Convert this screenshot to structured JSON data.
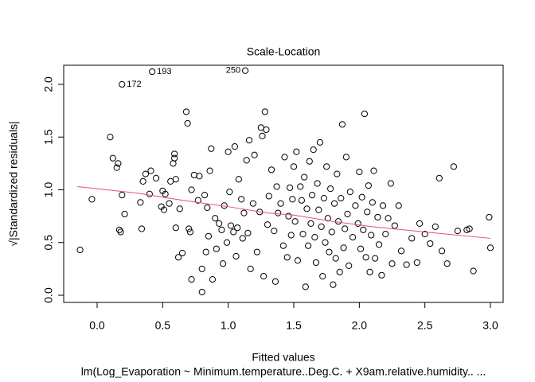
{
  "chart_data": {
    "type": "scatter",
    "title": "Scale-Location",
    "x_label": "Fitted values",
    "y_label": "√|Standardized residuals|",
    "subtitle": "lm(Log_Evaporation ~ Minimum.temperature..Deg.C. + X9am.relative.humidity.. ...",
    "xlim": [
      -0.255,
      3.097
    ],
    "ylim": [
      -0.068,
      2.181
    ],
    "xticks": [
      {
        "value": 0,
        "label": "0.0"
      },
      0.5,
      {
        "value": 1,
        "label": "1.0"
      },
      1.5,
      {
        "value": 2,
        "label": "2.0"
      },
      2.5,
      {
        "value": 3,
        "label": "3.0"
      }
    ],
    "yticks": [
      {
        "value": 0,
        "label": "0.0"
      },
      0.5,
      {
        "value": 1,
        "label": "1.0"
      },
      1.5,
      {
        "value": 2,
        "label": "2.0"
      }
    ],
    "point_color": "#000000",
    "x": [
      -0.13,
      -0.04,
      0.1,
      0.12,
      0.15,
      0.16,
      0.17,
      0.18,
      0.19,
      0.21,
      0.19,
      0.33,
      0.34,
      0.35,
      0.37,
      0.4,
      0.41,
      0.42,
      0.45,
      0.49,
      0.5,
      0.51,
      0.52,
      0.55,
      0.56,
      0.58,
      0.59,
      0.59,
      0.6,
      0.6,
      0.62,
      0.63,
      0.65,
      0.68,
      0.69,
      0.7,
      0.71,
      0.72,
      0.72,
      0.74,
      0.77,
      0.78,
      0.8,
      0.8,
      0.82,
      0.83,
      0.84,
      0.85,
      0.86,
      0.87,
      0.88,
      0.9,
      0.91,
      0.93,
      0.95,
      0.96,
      0.97,
      0.99,
      1.0,
      1.01,
      1.02,
      1.04,
      1.05,
      1.06,
      1.07,
      1.08,
      1.1,
      1.11,
      1.12,
      1.13,
      1.14,
      1.15,
      1.16,
      1.17,
      1.19,
      1.2,
      1.22,
      1.24,
      1.25,
      1.26,
      1.27,
      1.28,
      1.29,
      1.3,
      1.31,
      1.33,
      1.35,
      1.36,
      1.37,
      1.38,
      1.4,
      1.42,
      1.43,
      1.45,
      1.46,
      1.47,
      1.48,
      1.49,
      1.5,
      1.51,
      1.52,
      1.53,
      1.55,
      1.56,
      1.57,
      1.58,
      1.59,
      1.6,
      1.61,
      1.62,
      1.63,
      1.64,
      1.65,
      1.66,
      1.67,
      1.68,
      1.69,
      1.7,
      1.71,
      1.72,
      1.73,
      1.74,
      1.75,
      1.76,
      1.77,
      1.78,
      1.79,
      1.8,
      1.81,
      1.82,
      1.83,
      1.84,
      1.85,
      1.86,
      1.87,
      1.88,
      1.89,
      1.9,
      1.91,
      1.92,
      1.93,
      1.95,
      1.97,
      1.99,
      2.0,
      2.01,
      2.02,
      2.03,
      2.04,
      2.05,
      2.06,
      2.07,
      2.08,
      2.09,
      2.1,
      2.11,
      2.12,
      2.14,
      2.15,
      2.17,
      2.18,
      2.2,
      2.22,
      2.24,
      2.25,
      2.27,
      2.3,
      2.32,
      2.36,
      2.4,
      2.44,
      2.46,
      2.5,
      2.54,
      2.58,
      2.61,
      2.63,
      2.67,
      2.72,
      2.75,
      2.82,
      2.84,
      2.87,
      2.99,
      3.0
    ],
    "values": [
      0.43,
      0.91,
      1.5,
      1.3,
      1.21,
      1.25,
      0.62,
      0.6,
      0.95,
      0.77,
      2.0,
      0.88,
      0.63,
      1.08,
      1.15,
      0.96,
      1.18,
      2.12,
      1.11,
      0.84,
      0.99,
      0.81,
      0.96,
      0.87,
      1.08,
      1.25,
      1.3,
      1.34,
      1.1,
      0.64,
      0.36,
      0.82,
      0.4,
      1.74,
      1.63,
      0.63,
      0.6,
      0.15,
      1.0,
      1.14,
      0.9,
      1.13,
      0.03,
      0.25,
      0.95,
      0.41,
      0.83,
      0.56,
      1.18,
      1.39,
      0.15,
      0.73,
      0.44,
      0.68,
      0.62,
      0.3,
      0.85,
      0.5,
      1.36,
      0.98,
      0.66,
      0.6,
      1.41,
      0.37,
      0.64,
      1.1,
      0.91,
      0.54,
      0.78,
      2.13,
      1.28,
      0.59,
      1.47,
      0.25,
      0.87,
      1.33,
      0.41,
      0.79,
      1.59,
      1.51,
      0.18,
      1.74,
      1.57,
      0.67,
      0.94,
      1.19,
      0.61,
      0.13,
      1.03,
      0.78,
      0.87,
      0.47,
      1.31,
      0.36,
      0.75,
      1.02,
      0.57,
      0.91,
      1.22,
      0.7,
      1.36,
      0.33,
      1.03,
      0.9,
      0.58,
      1.12,
      0.08,
      0.82,
      0.47,
      1.27,
      0.68,
      0.95,
      1.38,
      0.55,
      0.31,
      1.06,
      0.81,
      1.45,
      0.65,
      0.18,
      0.92,
      0.5,
      1.22,
      0.73,
      0.41,
      1.01,
      0.6,
      0.1,
      0.87,
      0.35,
      1.15,
      0.7,
      0.22,
      0.92,
      1.62,
      0.45,
      0.63,
      1.31,
      0.77,
      0.28,
      0.98,
      0.55,
      0.85,
      0.68,
      1.17,
      0.44,
      0.93,
      0.62,
      1.72,
      0.36,
      0.79,
      1.04,
      0.22,
      0.57,
      0.88,
      1.18,
      0.35,
      0.74,
      0.48,
      0.19,
      0.85,
      0.58,
      0.73,
      1.06,
      0.3,
      0.66,
      0.85,
      0.42,
      0.29,
      0.54,
      0.31,
      0.68,
      0.58,
      0.49,
      0.65,
      1.11,
      0.42,
      0.3,
      1.22,
      0.61,
      0.62,
      0.63,
      0.23,
      0.74,
      0.45
    ],
    "annotations": [
      {
        "label": "193",
        "x": 0.42,
        "y": 2.12
      },
      {
        "label": "172",
        "x": 0.19,
        "y": 2.0
      },
      {
        "label": "250",
        "x": 1.13,
        "y": 2.13
      }
    ],
    "smooth": {
      "color": "#df536b",
      "x": [
        -0.15,
        0.3,
        0.6,
        1.0,
        1.3,
        1.5,
        1.8,
        2.1,
        2.5,
        3.0
      ],
      "values": [
        1.03,
        0.97,
        0.91,
        0.84,
        0.78,
        0.76,
        0.7,
        0.65,
        0.6,
        0.54
      ]
    }
  }
}
